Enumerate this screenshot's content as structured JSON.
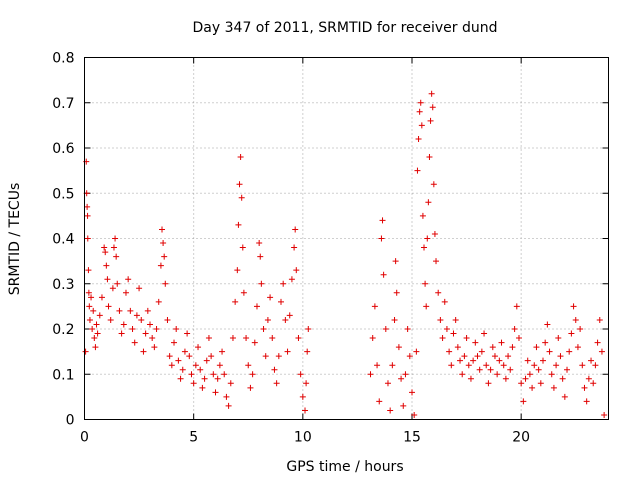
{
  "chart_data": {
    "type": "scatter",
    "title": "Day 347 of 2011, SRMTID for receiver dund",
    "xlabel": "GPS time / hours",
    "ylabel": "SRMTID / TECUs",
    "xlim": [
      0,
      24
    ],
    "ylim": [
      0,
      0.8
    ],
    "xticks": [
      "0",
      "5",
      "10",
      "15",
      "20"
    ],
    "xtick_values": [
      0,
      5,
      10,
      15,
      20
    ],
    "yticks": [
      "0",
      "0.1",
      "0.2",
      "0.3",
      "0.4",
      "0.5",
      "0.6",
      "0.7",
      "0.8"
    ],
    "ytick_values": [
      0,
      0.1,
      0.2,
      0.3,
      0.4,
      0.5,
      0.6,
      0.7,
      0.8
    ],
    "grid": true,
    "marker": "+",
    "color": "#e00000",
    "series": [
      {
        "name": "SRMTID",
        "points": [
          [
            0.05,
            0.15
          ],
          [
            0.08,
            0.57
          ],
          [
            0.1,
            0.5
          ],
          [
            0.12,
            0.47
          ],
          [
            0.14,
            0.45
          ],
          [
            0.15,
            0.4
          ],
          [
            0.18,
            0.33
          ],
          [
            0.2,
            0.28
          ],
          [
            0.22,
            0.25
          ],
          [
            0.25,
            0.22
          ],
          [
            0.3,
            0.27
          ],
          [
            0.35,
            0.2
          ],
          [
            0.4,
            0.24
          ],
          [
            0.45,
            0.18
          ],
          [
            0.5,
            0.16
          ],
          [
            0.55,
            0.21
          ],
          [
            0.6,
            0.19
          ],
          [
            0.7,
            0.23
          ],
          [
            0.8,
            0.27
          ],
          [
            0.9,
            0.38
          ],
          [
            0.95,
            0.37
          ],
          [
            1.0,
            0.34
          ],
          [
            1.05,
            0.31
          ],
          [
            1.1,
            0.25
          ],
          [
            1.2,
            0.22
          ],
          [
            1.3,
            0.29
          ],
          [
            1.35,
            0.38
          ],
          [
            1.4,
            0.4
          ],
          [
            1.45,
            0.36
          ],
          [
            1.5,
            0.3
          ],
          [
            1.6,
            0.24
          ],
          [
            1.7,
            0.19
          ],
          [
            1.8,
            0.21
          ],
          [
            1.9,
            0.28
          ],
          [
            2.0,
            0.31
          ],
          [
            2.1,
            0.24
          ],
          [
            2.2,
            0.2
          ],
          [
            2.3,
            0.17
          ],
          [
            2.4,
            0.23
          ],
          [
            2.5,
            0.29
          ],
          [
            2.6,
            0.22
          ],
          [
            2.7,
            0.15
          ],
          [
            2.8,
            0.19
          ],
          [
            2.9,
            0.24
          ],
          [
            3.0,
            0.21
          ],
          [
            3.1,
            0.18
          ],
          [
            3.2,
            0.16
          ],
          [
            3.3,
            0.2
          ],
          [
            3.4,
            0.26
          ],
          [
            3.5,
            0.34
          ],
          [
            3.55,
            0.42
          ],
          [
            3.6,
            0.39
          ],
          [
            3.65,
            0.36
          ],
          [
            3.7,
            0.3
          ],
          [
            3.8,
            0.22
          ],
          [
            3.9,
            0.14
          ],
          [
            4.0,
            0.12
          ],
          [
            4.1,
            0.17
          ],
          [
            4.2,
            0.2
          ],
          [
            4.3,
            0.13
          ],
          [
            4.4,
            0.09
          ],
          [
            4.5,
            0.11
          ],
          [
            4.6,
            0.15
          ],
          [
            4.7,
            0.19
          ],
          [
            4.8,
            0.14
          ],
          [
            4.9,
            0.1
          ],
          [
            5.0,
            0.08
          ],
          [
            5.1,
            0.12
          ],
          [
            5.2,
            0.16
          ],
          [
            5.3,
            0.11
          ],
          [
            5.4,
            0.07
          ],
          [
            5.5,
            0.09
          ],
          [
            5.6,
            0.13
          ],
          [
            5.7,
            0.18
          ],
          [
            5.8,
            0.14
          ],
          [
            5.9,
            0.1
          ],
          [
            6.0,
            0.06
          ],
          [
            6.1,
            0.09
          ],
          [
            6.2,
            0.12
          ],
          [
            6.3,
            0.15
          ],
          [
            6.4,
            0.1
          ],
          [
            6.5,
            0.05
          ],
          [
            6.6,
            0.03
          ],
          [
            6.7,
            0.08
          ],
          [
            6.8,
            0.18
          ],
          [
            6.9,
            0.26
          ],
          [
            7.0,
            0.33
          ],
          [
            7.05,
            0.43
          ],
          [
            7.1,
            0.52
          ],
          [
            7.15,
            0.58
          ],
          [
            7.2,
            0.49
          ],
          [
            7.25,
            0.38
          ],
          [
            7.3,
            0.28
          ],
          [
            7.4,
            0.18
          ],
          [
            7.5,
            0.12
          ],
          [
            7.6,
            0.07
          ],
          [
            7.7,
            0.1
          ],
          [
            7.8,
            0.17
          ],
          [
            7.9,
            0.25
          ],
          [
            8.0,
            0.39
          ],
          [
            8.05,
            0.36
          ],
          [
            8.1,
            0.3
          ],
          [
            8.2,
            0.2
          ],
          [
            8.3,
            0.14
          ],
          [
            8.4,
            0.22
          ],
          [
            8.5,
            0.27
          ],
          [
            8.6,
            0.18
          ],
          [
            8.7,
            0.11
          ],
          [
            8.8,
            0.08
          ],
          [
            8.9,
            0.14
          ],
          [
            9.0,
            0.26
          ],
          [
            9.1,
            0.3
          ],
          [
            9.2,
            0.22
          ],
          [
            9.3,
            0.15
          ],
          [
            9.4,
            0.23
          ],
          [
            9.5,
            0.31
          ],
          [
            9.6,
            0.38
          ],
          [
            9.65,
            0.42
          ],
          [
            9.7,
            0.33
          ],
          [
            9.8,
            0.18
          ],
          [
            9.9,
            0.1
          ],
          [
            10.0,
            0.05
          ],
          [
            10.1,
            0.02
          ],
          [
            10.15,
            0.08
          ],
          [
            10.2,
            0.15
          ],
          [
            10.25,
            0.2
          ],
          [
            13.1,
            0.1
          ],
          [
            13.2,
            0.18
          ],
          [
            13.3,
            0.25
          ],
          [
            13.4,
            0.12
          ],
          [
            13.5,
            0.04
          ],
          [
            13.6,
            0.4
          ],
          [
            13.65,
            0.44
          ],
          [
            13.7,
            0.32
          ],
          [
            13.8,
            0.2
          ],
          [
            13.9,
            0.08
          ],
          [
            14.0,
            0.02
          ],
          [
            14.1,
            0.12
          ],
          [
            14.2,
            0.22
          ],
          [
            14.25,
            0.35
          ],
          [
            14.3,
            0.28
          ],
          [
            14.4,
            0.16
          ],
          [
            14.5,
            0.09
          ],
          [
            14.6,
            0.03
          ],
          [
            14.7,
            0.1
          ],
          [
            14.8,
            0.2
          ],
          [
            14.9,
            0.14
          ],
          [
            15.0,
            0.06
          ],
          [
            15.1,
            0.01
          ],
          [
            15.2,
            0.15
          ],
          [
            15.25,
            0.55
          ],
          [
            15.3,
            0.62
          ],
          [
            15.35,
            0.68
          ],
          [
            15.4,
            0.7
          ],
          [
            15.45,
            0.65
          ],
          [
            15.5,
            0.45
          ],
          [
            15.55,
            0.38
          ],
          [
            15.6,
            0.3
          ],
          [
            15.65,
            0.25
          ],
          [
            15.7,
            0.4
          ],
          [
            15.75,
            0.48
          ],
          [
            15.8,
            0.58
          ],
          [
            15.85,
            0.66
          ],
          [
            15.9,
            0.72
          ],
          [
            15.95,
            0.69
          ],
          [
            16.0,
            0.52
          ],
          [
            16.05,
            0.41
          ],
          [
            16.1,
            0.35
          ],
          [
            16.2,
            0.28
          ],
          [
            16.3,
            0.22
          ],
          [
            16.4,
            0.18
          ],
          [
            16.5,
            0.26
          ],
          [
            16.6,
            0.2
          ],
          [
            16.7,
            0.15
          ],
          [
            16.8,
            0.12
          ],
          [
            16.9,
            0.19
          ],
          [
            17.0,
            0.22
          ],
          [
            17.1,
            0.16
          ],
          [
            17.2,
            0.13
          ],
          [
            17.3,
            0.1
          ],
          [
            17.4,
            0.14
          ],
          [
            17.5,
            0.18
          ],
          [
            17.6,
            0.12
          ],
          [
            17.7,
            0.09
          ],
          [
            17.8,
            0.13
          ],
          [
            17.9,
            0.17
          ],
          [
            18.0,
            0.14
          ],
          [
            18.1,
            0.11
          ],
          [
            18.2,
            0.15
          ],
          [
            18.3,
            0.19
          ],
          [
            18.4,
            0.12
          ],
          [
            18.5,
            0.08
          ],
          [
            18.6,
            0.11
          ],
          [
            18.7,
            0.16
          ],
          [
            18.8,
            0.14
          ],
          [
            18.9,
            0.1
          ],
          [
            19.0,
            0.13
          ],
          [
            19.1,
            0.17
          ],
          [
            19.2,
            0.12
          ],
          [
            19.3,
            0.09
          ],
          [
            19.4,
            0.14
          ],
          [
            19.5,
            0.11
          ],
          [
            19.6,
            0.16
          ],
          [
            19.7,
            0.2
          ],
          [
            19.8,
            0.25
          ],
          [
            19.9,
            0.18
          ],
          [
            20.0,
            0.08
          ],
          [
            20.1,
            0.04
          ],
          [
            20.2,
            0.09
          ],
          [
            20.3,
            0.13
          ],
          [
            20.4,
            0.1
          ],
          [
            20.5,
            0.07
          ],
          [
            20.6,
            0.12
          ],
          [
            20.7,
            0.16
          ],
          [
            20.8,
            0.11
          ],
          [
            20.9,
            0.08
          ],
          [
            21.0,
            0.13
          ],
          [
            21.1,
            0.17
          ],
          [
            21.2,
            0.21
          ],
          [
            21.3,
            0.15
          ],
          [
            21.4,
            0.1
          ],
          [
            21.5,
            0.07
          ],
          [
            21.6,
            0.12
          ],
          [
            21.7,
            0.18
          ],
          [
            21.8,
            0.14
          ],
          [
            21.9,
            0.09
          ],
          [
            22.0,
            0.05
          ],
          [
            22.1,
            0.11
          ],
          [
            22.2,
            0.15
          ],
          [
            22.3,
            0.19
          ],
          [
            22.4,
            0.25
          ],
          [
            22.5,
            0.22
          ],
          [
            22.6,
            0.16
          ],
          [
            22.7,
            0.2
          ],
          [
            22.8,
            0.12
          ],
          [
            22.9,
            0.07
          ],
          [
            23.0,
            0.04
          ],
          [
            23.1,
            0.09
          ],
          [
            23.2,
            0.13
          ],
          [
            23.3,
            0.08
          ],
          [
            23.4,
            0.12
          ],
          [
            23.5,
            0.17
          ],
          [
            23.6,
            0.22
          ],
          [
            23.7,
            0.15
          ],
          [
            23.8,
            0.01
          ]
        ]
      }
    ]
  }
}
